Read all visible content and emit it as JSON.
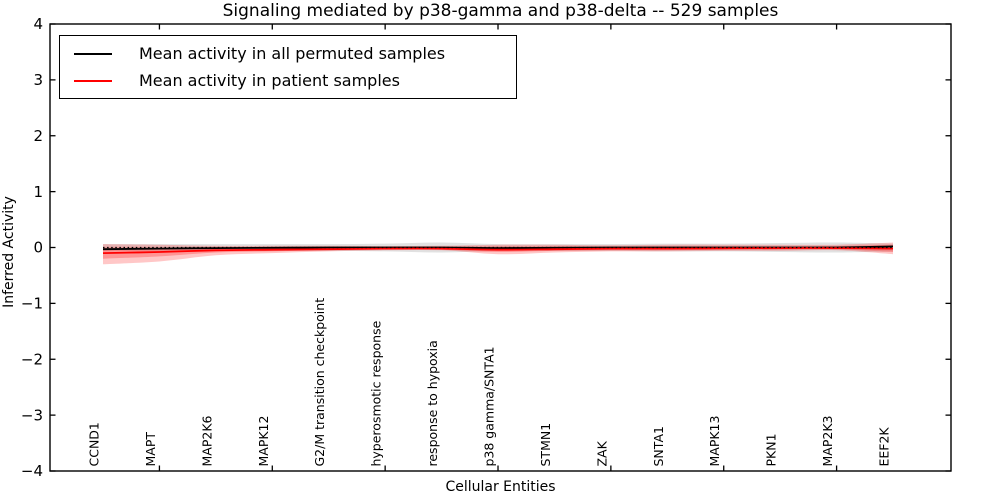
{
  "title": "Signaling mediated by p38-gamma and p38-delta -- 529 samples",
  "legend": {
    "items": [
      {
        "label": "Mean activity in all permuted samples",
        "color": "#000000"
      },
      {
        "label": "Mean activity in patient samples",
        "color": "#ff0000"
      }
    ],
    "position": "upper left"
  },
  "chart_data": {
    "type": "line",
    "title": "Signaling mediated by p38-gamma and p38-delta -- 529 samples",
    "xlabel": "Cellular Entities",
    "ylabel": "Inferred Activity",
    "ylim": [
      -4,
      4
    ],
    "grid": false,
    "legend_position": "upper left",
    "yticks": [
      {
        "value": 4,
        "label": "4"
      },
      {
        "value": 3,
        "label": "3"
      },
      {
        "value": 2,
        "label": "2"
      },
      {
        "value": 1,
        "label": "1"
      },
      {
        "value": 0,
        "label": "0"
      },
      {
        "value": -1,
        "label": "−1"
      },
      {
        "value": -2,
        "label": "−2"
      },
      {
        "value": -3,
        "label": "−3"
      },
      {
        "value": -4,
        "label": "−4"
      }
    ],
    "categories": [
      "CCND1",
      "MAPT",
      "MAP2K6",
      "MAPK12",
      "G2/M transition checkpoint",
      "hyperosmotic response",
      "response to hypoxia",
      "p38 gamma/SNTA1",
      "STMN1",
      "ZAK",
      "SNTA1",
      "MAPK13",
      "PKN1",
      "MAP2K3",
      "EEF2K"
    ],
    "x_major_tick_indices": [
      1,
      3,
      5,
      7,
      9,
      11,
      13
    ],
    "zero_line": {
      "y": 0,
      "color": "#000000",
      "style": "dashed"
    },
    "series": [
      {
        "name": "Mean activity in all permuted samples",
        "color": "#000000",
        "values": [
          -0.03,
          -0.02,
          -0.01,
          -0.005,
          0,
          0,
          0,
          -0.01,
          -0.005,
          0,
          0,
          0,
          0,
          0,
          0.02
        ]
      },
      {
        "name": "Mean activity in patient samples",
        "color": "#ff0000",
        "values": [
          -0.1,
          -0.08,
          -0.05,
          -0.04,
          -0.03,
          -0.02,
          -0.02,
          -0.04,
          -0.03,
          -0.02,
          -0.02,
          -0.015,
          -0.01,
          -0.01,
          -0.02
        ]
      }
    ],
    "bands": [
      {
        "name": "permuted-range",
        "color": "#888888",
        "opacity": 0.25,
        "upper": [
          0.06,
          0.06,
          0.06,
          0.06,
          0.06,
          0.07,
          0.09,
          0.06,
          0.06,
          0.06,
          0.07,
          0.07,
          0.08,
          0.09,
          0.07
        ],
        "lower": [
          -0.06,
          -0.06,
          -0.06,
          -0.06,
          -0.06,
          -0.07,
          -0.09,
          -0.06,
          -0.06,
          -0.06,
          -0.07,
          -0.07,
          -0.08,
          -0.09,
          -0.07
        ]
      },
      {
        "name": "patient-range-outer",
        "color": "#ff0000",
        "opacity": 0.22,
        "upper": [
          0.06,
          0.05,
          0.03,
          0.03,
          0.03,
          0.025,
          0.03,
          0.05,
          0.05,
          0.04,
          0.05,
          0.05,
          0.05,
          0.05,
          0.09
        ],
        "lower": [
          -0.3,
          -0.25,
          -0.14,
          -0.1,
          -0.07,
          -0.05,
          -0.05,
          -0.12,
          -0.09,
          -0.07,
          -0.07,
          -0.06,
          -0.06,
          -0.05,
          -0.12
        ]
      },
      {
        "name": "patient-range-inner",
        "color": "#ff0000",
        "opacity": 0.25,
        "upper": [
          0.0,
          0.0,
          0.005,
          0.005,
          0.005,
          0.005,
          0.01,
          0.02,
          0.02,
          0.015,
          0.02,
          0.02,
          0.02,
          0.025,
          0.05
        ],
        "lower": [
          -0.2,
          -0.16,
          -0.09,
          -0.07,
          -0.05,
          -0.035,
          -0.04,
          -0.08,
          -0.06,
          -0.05,
          -0.05,
          -0.04,
          -0.04,
          -0.035,
          -0.08
        ]
      }
    ]
  }
}
